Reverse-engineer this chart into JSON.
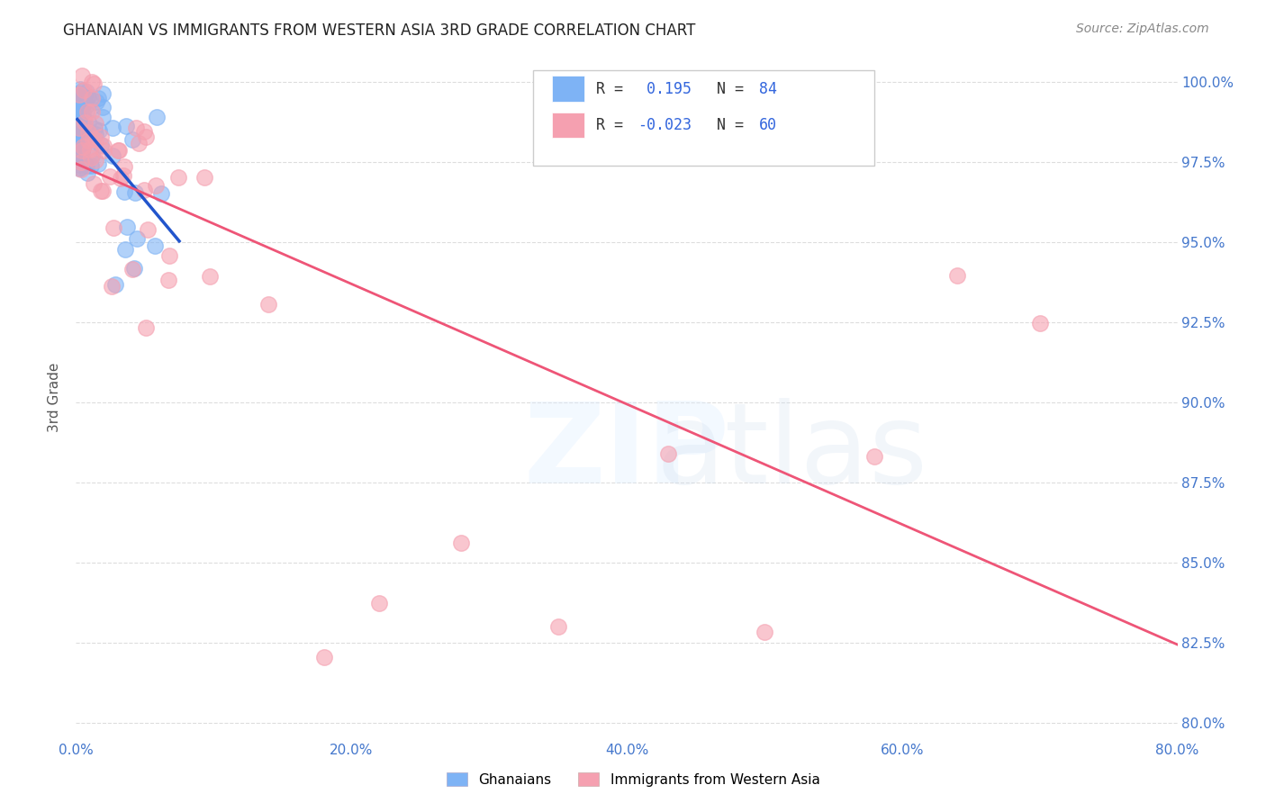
{
  "title": "GHANAIAN VS IMMIGRANTS FROM WESTERN ASIA 3RD GRADE CORRELATION CHART",
  "source": "Source: ZipAtlas.com",
  "ylabel": "3rd Grade",
  "xlim": [
    0.0,
    0.8
  ],
  "ylim": [
    0.795,
    1.008
  ],
  "x_ticks": [
    0.0,
    0.2,
    0.4,
    0.6,
    0.8
  ],
  "y_ticks": [
    0.8,
    0.825,
    0.85,
    0.875,
    0.9,
    0.925,
    0.95,
    0.975,
    1.0
  ],
  "legend_label_blue": "Ghanaians",
  "legend_label_pink": "Immigrants from Western Asia",
  "R_blue": 0.195,
  "N_blue": 84,
  "R_pink": -0.023,
  "N_pink": 60,
  "blue_color": "#7EB3F5",
  "pink_color": "#F5A0B0",
  "trendline_blue_color": "#2255CC",
  "trendline_pink_color": "#EE5577",
  "title_color": "#222222",
  "axis_color": "#4477CC",
  "source_color": "#888888",
  "grid_color": "#DDDDDD",
  "ylabel_color": "#555555"
}
